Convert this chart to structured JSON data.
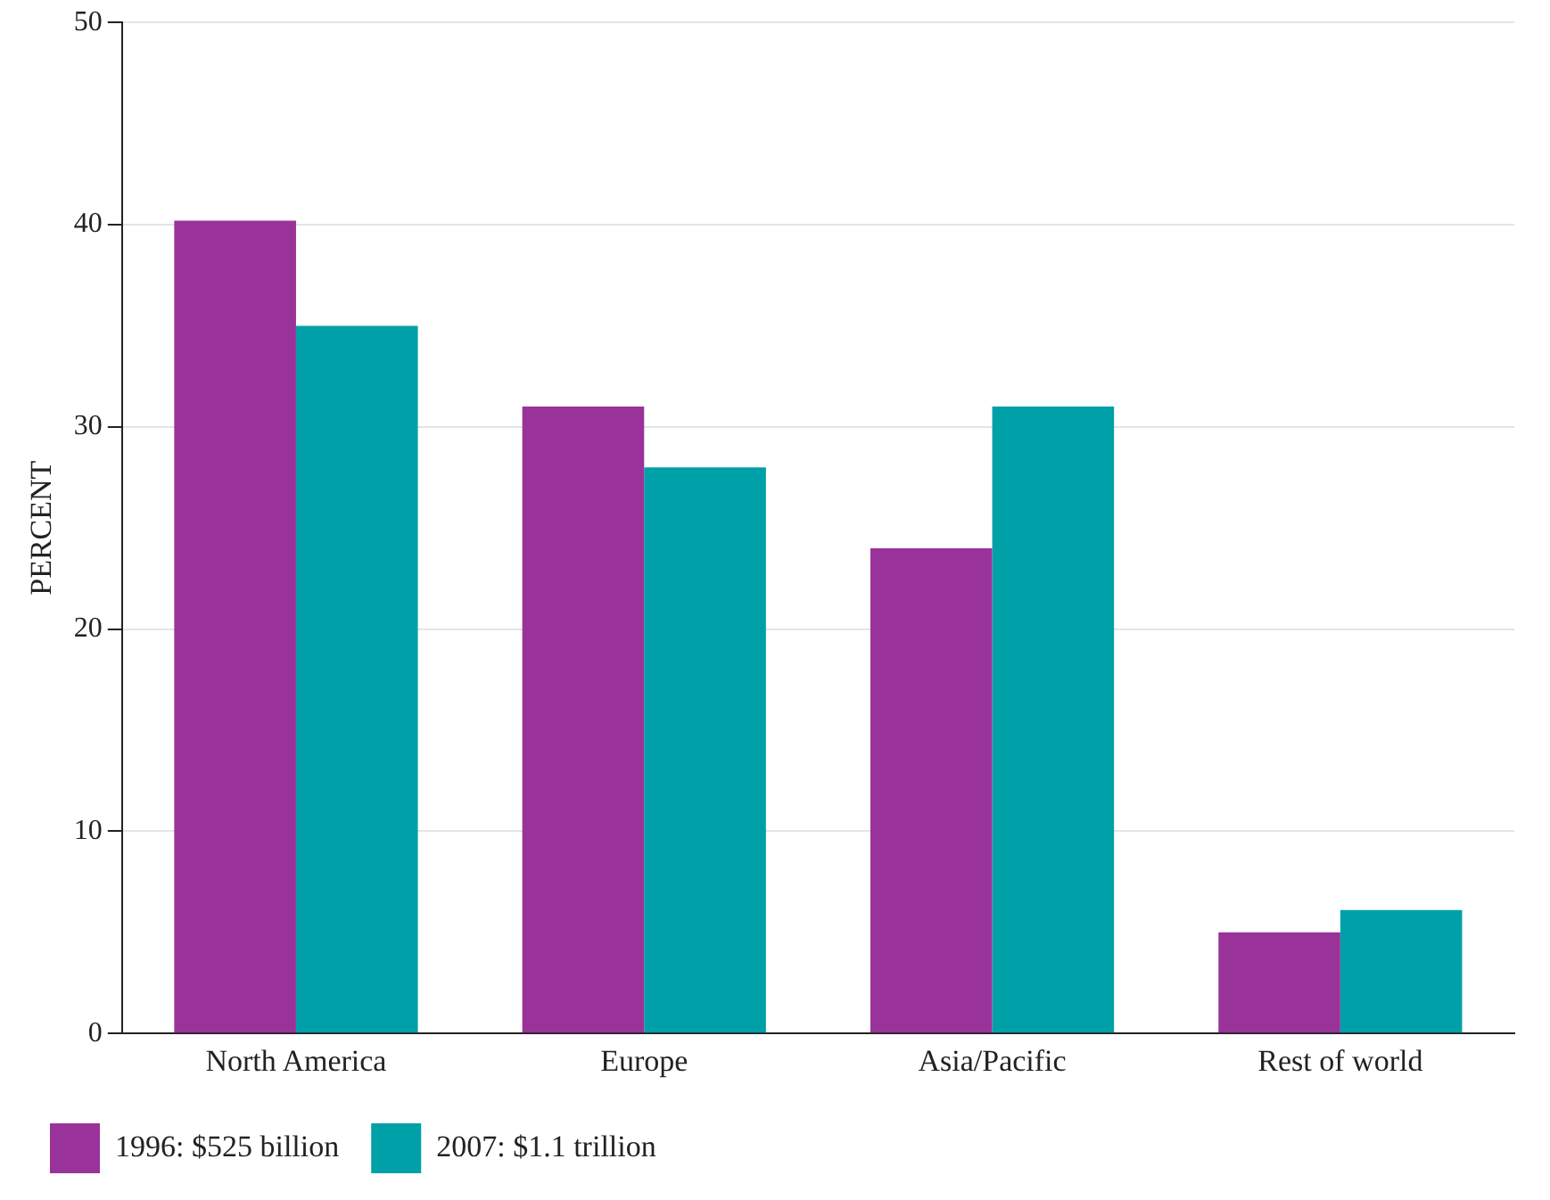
{
  "chart_data": {
    "type": "bar",
    "ylabel": "PERCENT",
    "categories": [
      "North America",
      "Europe",
      "Asia/Pacific",
      "Rest of world"
    ],
    "series": [
      {
        "name": "1996: $525 billion",
        "color": "#993399",
        "values": [
          40.2,
          31,
          24,
          5
        ]
      },
      {
        "name": "2007: $1.1 trillion",
        "color": "#00a0a8",
        "values": [
          35,
          28,
          31,
          6.1
        ]
      }
    ],
    "ylim": [
      0,
      50
    ],
    "yticks": [
      0,
      10,
      20,
      30,
      40,
      50
    ],
    "grid": "y",
    "legend": "bottom left"
  }
}
